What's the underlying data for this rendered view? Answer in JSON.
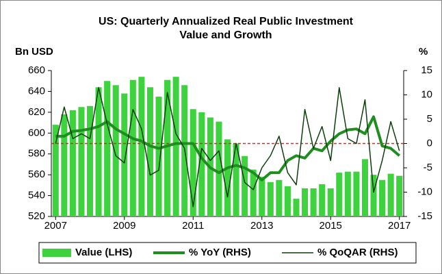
{
  "chart_data": {
    "type": "bar_line",
    "title": [
      "US: Quarterly Annualized Real Public Investment",
      "Value and Growth"
    ],
    "y_label": "Bn USD",
    "y2_label": "%",
    "categories": [
      "2007",
      null,
      null,
      null,
      null,
      null,
      null,
      null,
      "2009",
      null,
      null,
      null,
      null,
      null,
      null,
      null,
      "2011",
      null,
      null,
      null,
      null,
      null,
      null,
      null,
      "2013",
      null,
      null,
      null,
      null,
      null,
      null,
      null,
      "2015",
      null,
      null,
      null,
      null,
      null,
      null,
      null,
      "2017"
    ],
    "series": [
      {
        "name": "Value (LHS)",
        "type": "bar",
        "axis": "y",
        "color": "#3fd23f",
        "values": [
          608,
          618,
          622,
          625,
          626,
          644,
          650,
          646,
          638,
          651,
          654,
          644,
          635,
          651,
          654,
          646,
          623,
          620,
          615,
          611,
          594,
          590,
          578,
          565,
          558,
          553,
          555,
          549,
          537,
          547,
          547,
          551,
          547,
          562,
          563,
          563,
          575,
          560,
          555,
          561,
          559
        ]
      },
      {
        "name": "% YoY (RHS)",
        "type": "line",
        "axis": "y2",
        "color": "#1e8f1e",
        "width": 4,
        "values": [
          1.5,
          1.5,
          2.5,
          2.7,
          3,
          3.5,
          4.5,
          3,
          2,
          1,
          0.5,
          -0.5,
          -1,
          -0.5,
          0,
          0,
          0,
          -3,
          -5,
          -6,
          -5,
          -4.5,
          -5,
          -6,
          -7.5,
          -6,
          -6,
          -3.5,
          -2.5,
          -3,
          -1,
          -1.5,
          0.5,
          2,
          2.8,
          3,
          2,
          5.5,
          -0.5,
          -1,
          -2.5
        ]
      },
      {
        "name": "% QoQAR (RHS)",
        "type": "line",
        "axis": "y2",
        "color": "#0b3d0b",
        "width": 1.5,
        "values": [
          0,
          7.5,
          1,
          2,
          1,
          11.5,
          4,
          -2.5,
          -4,
          7,
          3,
          -6.5,
          -5.5,
          10.5,
          2,
          -1,
          -13,
          -1,
          -3.5,
          -1.5,
          -11,
          0,
          -8,
          -9.5,
          -5,
          -2.5,
          1.5,
          -6,
          -8.5,
          7,
          -1,
          3.5,
          -3.5,
          11.5,
          1,
          0,
          9,
          -10,
          -3.5,
          4.5,
          -1.5
        ]
      }
    ],
    "reference_line": {
      "value": 0,
      "axis": "y2",
      "color": "#e02424"
    },
    "ylim": [
      520,
      660
    ],
    "yticks": [
      520,
      540,
      560,
      580,
      600,
      620,
      640,
      660
    ],
    "y2lim": [
      -15,
      15
    ],
    "y2ticks": [
      -15,
      -10,
      -5,
      0,
      5,
      10,
      15
    ],
    "grid": false,
    "legend": "bottom"
  }
}
